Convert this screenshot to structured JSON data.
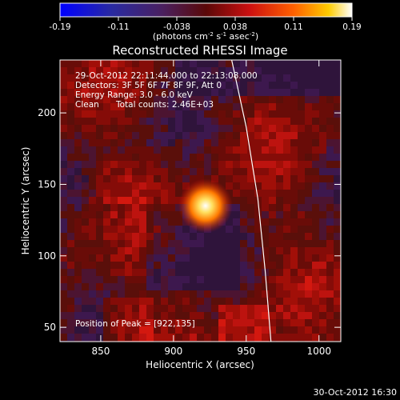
{
  "chart_data": {
    "type": "heatmap",
    "title": "Reconstructed RHESSI Image",
    "xlabel": "Heliocentric X (arcsec)",
    "ylabel": "Heliocentric Y (arcsec)",
    "xlim": [
      822,
      1015
    ],
    "ylim": [
      40,
      237
    ],
    "xticks": [
      850,
      900,
      950,
      1000
    ],
    "yticks": [
      50,
      100,
      150,
      200
    ],
    "grid": false,
    "colorbar": {
      "position": "top",
      "range": [
        -0.19,
        0.19
      ],
      "ticks": [
        "-0.19",
        "-0.11",
        "-0.038",
        "0.038",
        "0.11",
        "0.19"
      ],
      "units_prefix": "(photons cm",
      "units_exp1": "-2",
      "units_mid": " s",
      "units_exp2": "-1",
      "units_mid2": " asec",
      "units_exp3": "-2",
      "units_suffix": ")"
    },
    "annotations": {
      "time_range": "29-Oct-2012 22:11:44.000 to 22:13:08.000",
      "detectors": "Detectors: 3F 5F 6F 7F 8F 9F, Att 0",
      "energy_range": "Energy Range: 3.0 - 6.0 keV",
      "method": "Clean",
      "total_counts": "Total counts: 2.46E+03",
      "peak_position": "Position of Peak = [922,135]"
    },
    "peak": {
      "x": 922,
      "y": 135,
      "value": 0.19
    },
    "limb_curve": [
      [
        940,
        237
      ],
      [
        950,
        190
      ],
      [
        958,
        140
      ],
      [
        963,
        90
      ],
      [
        967,
        40
      ]
    ],
    "timestamp": "30-Oct-2012 16:30"
  },
  "colors": {
    "background": "#000000",
    "colormap": [
      "#0000ff",
      "#3a1a7a",
      "#7a1010",
      "#e01010",
      "#ff7a00",
      "#ffd000",
      "#ffffff"
    ]
  }
}
